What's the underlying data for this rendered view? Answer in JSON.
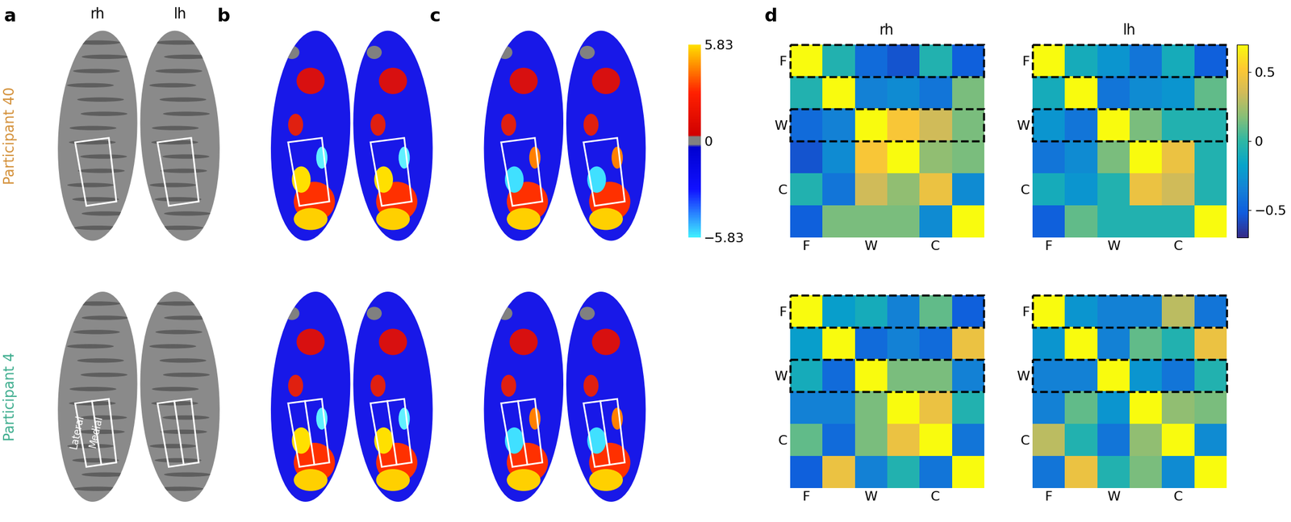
{
  "panel_labels": [
    "a",
    "b",
    "c",
    "d"
  ],
  "hemispheres": [
    "rh",
    "lh"
  ],
  "participants": [
    {
      "name": "Participant 40",
      "color": "#d4913a"
    },
    {
      "name": "Participant 4",
      "color": "#3fae8f"
    }
  ],
  "roi_labels": [
    "Lateral",
    "Medial"
  ],
  "brain_colorbar": {
    "range": [
      -5.83,
      5.83
    ],
    "ticks": [
      5.83,
      0,
      {
        "value": -5.83,
        "label": "−5.83"
      }
    ]
  },
  "matrix_colorbar": {
    "range": [
      -0.7,
      0.7
    ],
    "ticks": [
      0.5,
      0,
      {
        "value": -0.5,
        "label": "−0.5"
      }
    ]
  },
  "chart_data": [
    {
      "type": "heatmap",
      "title": "rh",
      "highlight_rows": [
        0,
        2
      ],
      "xticks": [
        {
          "value": 0,
          "label": "F"
        },
        {
          "value": 2,
          "label": "W"
        },
        {
          "value": 4,
          "label": "C"
        }
      ],
      "yticks": [
        {
          "value": 0,
          "label": "F"
        },
        {
          "value": 2,
          "label": "W"
        },
        {
          "value": 4,
          "label": "C"
        }
      ],
      "cells": [
        [
          1,
          -0.05,
          -0.45,
          -0.55,
          -0.05,
          -0.5
        ],
        [
          -0.05,
          1,
          -0.35,
          -0.3,
          -0.4,
          0.15
        ],
        [
          -0.45,
          -0.35,
          1,
          0.5,
          0.35,
          0.15
        ],
        [
          -0.55,
          -0.3,
          0.5,
          1,
          0.2,
          0.15
        ],
        [
          -0.05,
          -0.4,
          0.35,
          0.2,
          0.45,
          -0.3
        ],
        [
          -0.5,
          0.15,
          0.15,
          0.15,
          -0.3,
          1
        ]
      ]
    },
    {
      "type": "heatmap",
      "title": "lh",
      "highlight_rows": [
        0,
        2
      ],
      "xticks": [
        {
          "value": 0,
          "label": "F"
        },
        {
          "value": 2,
          "label": "W"
        },
        {
          "value": 4,
          "label": "C"
        }
      ],
      "yticks": [
        {
          "value": 0,
          "label": "F"
        },
        {
          "value": 2,
          "label": "W"
        },
        {
          "value": 4,
          "label": "C"
        }
      ],
      "cells": [
        [
          1,
          -0.1,
          -0.25,
          -0.4,
          -0.1,
          -0.5
        ],
        [
          -0.1,
          1,
          -0.4,
          -0.3,
          -0.25,
          0.1
        ],
        [
          -0.25,
          -0.4,
          1,
          0.15,
          -0.05,
          -0.05
        ],
        [
          -0.4,
          -0.3,
          0.15,
          1,
          0.45,
          -0.05
        ],
        [
          -0.1,
          -0.25,
          -0.05,
          0.45,
          0.35,
          -0.05
        ],
        [
          -0.5,
          0.1,
          -0.05,
          -0.05,
          -0.05,
          1
        ]
      ]
    },
    {
      "type": "heatmap",
      "highlight_rows": [
        0,
        2
      ],
      "xticks": [
        {
          "value": 0,
          "label": "F"
        },
        {
          "value": 2,
          "label": "W"
        },
        {
          "value": 4,
          "label": "C"
        }
      ],
      "yticks": [
        {
          "value": 0,
          "label": "F"
        },
        {
          "value": 2,
          "label": "W"
        },
        {
          "value": 4,
          "label": "C"
        }
      ],
      "cells": [
        [
          1,
          -0.2,
          -0.1,
          -0.35,
          0.1,
          -0.5
        ],
        [
          -0.2,
          1,
          -0.45,
          -0.35,
          -0.45,
          0.45
        ],
        [
          -0.1,
          -0.45,
          1,
          0.15,
          0.15,
          -0.35
        ],
        [
          -0.35,
          -0.35,
          0.15,
          1,
          0.45,
          -0.05
        ],
        [
          0.1,
          -0.45,
          0.15,
          0.45,
          1,
          -0.4
        ],
        [
          -0.5,
          0.45,
          -0.35,
          -0.05,
          -0.4,
          1
        ]
      ]
    },
    {
      "type": "heatmap",
      "highlight_rows": [
        0,
        2
      ],
      "xticks": [
        {
          "value": 0,
          "label": "F"
        },
        {
          "value": 2,
          "label": "W"
        },
        {
          "value": 4,
          "label": "C"
        }
      ],
      "yticks": [
        {
          "value": 0,
          "label": "F"
        },
        {
          "value": 2,
          "label": "W"
        },
        {
          "value": 4,
          "label": "C"
        }
      ],
      "cells": [
        [
          1,
          -0.25,
          -0.35,
          -0.35,
          0.3,
          -0.4
        ],
        [
          -0.25,
          1,
          -0.35,
          0.1,
          -0.05,
          0.45
        ],
        [
          -0.35,
          -0.35,
          1,
          -0.25,
          -0.4,
          -0.05
        ],
        [
          -0.35,
          0.1,
          -0.25,
          0.75,
          0.2,
          0.15
        ],
        [
          0.3,
          -0.05,
          -0.4,
          0.2,
          1,
          -0.3
        ],
        [
          -0.4,
          0.45,
          -0.05,
          0.15,
          -0.3,
          1
        ]
      ]
    }
  ]
}
